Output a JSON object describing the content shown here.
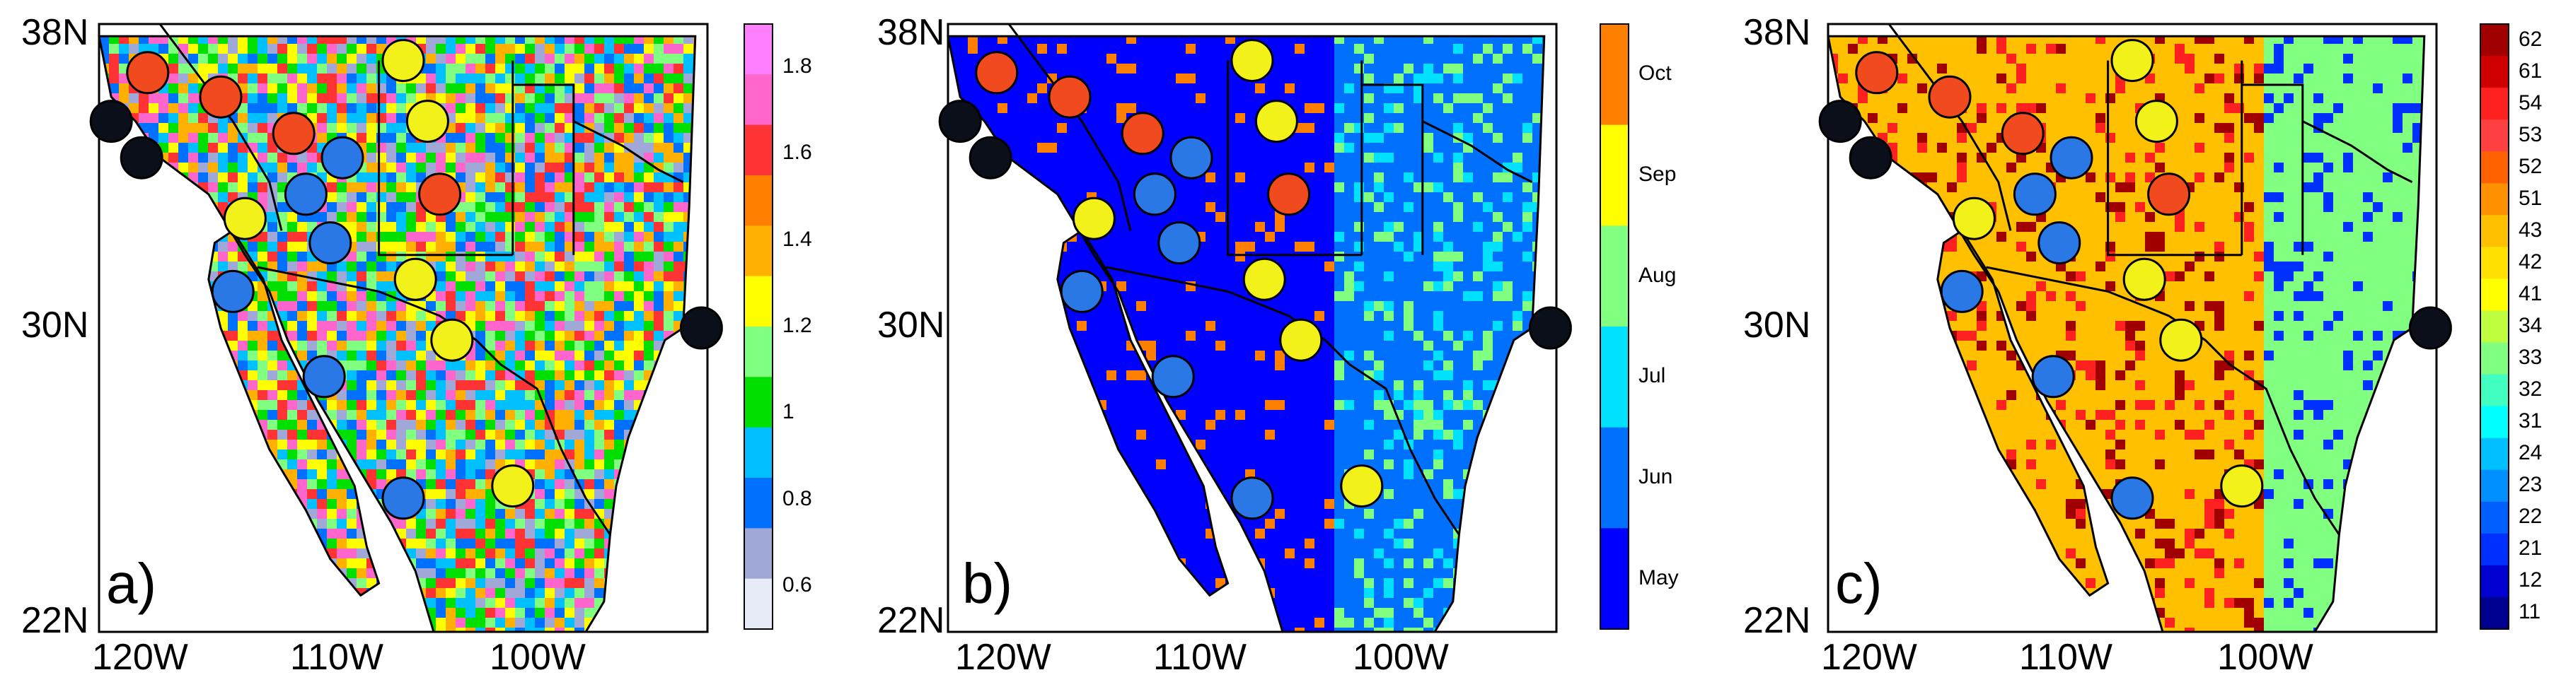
{
  "panels": [
    {
      "letter": "a)",
      "ylabels": [
        "38N",
        "30N",
        "22N"
      ],
      "xlabels": [
        "120W",
        "110W",
        "100W"
      ],
      "colorbar": {
        "labels": [
          "1.8",
          "1.6",
          "1.4",
          "1.2",
          "1",
          "0.8",
          "0.6"
        ],
        "colors": [
          "#ff80ff",
          "#ff66cc",
          "#ff3333",
          "#ff8000",
          "#ffb000",
          "#ffff00",
          "#80ff80",
          "#00e000",
          "#00c0ff",
          "#0070ff",
          "#a0a8d8",
          "#e8ecf8"
        ]
      },
      "map_palette": [
        "#00c0ff",
        "#0070ff",
        "#80ff80",
        "#00e000",
        "#ffff00",
        "#ff3333",
        "#ffb000",
        "#a0a8d8",
        "#ff66cc"
      ]
    },
    {
      "letter": "b)",
      "ylabels": [
        "38N",
        "30N",
        "22N"
      ],
      "xlabels": [
        "120W",
        "110W",
        "100W"
      ],
      "colorbar": {
        "labels": [
          "Oct",
          "Sep",
          "Aug",
          "Jul",
          "Jun",
          "May"
        ],
        "colors": [
          "#ff8000",
          "#ffff00",
          "#80ff80",
          "#00e0ff",
          "#0070ff",
          "#0000ff"
        ]
      },
      "map_palette": [
        "#0000ff",
        "#0070ff",
        "#00e0ff",
        "#80ff80",
        "#ffff00",
        "#ff8000"
      ]
    },
    {
      "letter": "c)",
      "ylabels": [
        "38N",
        "30N",
        "22N"
      ],
      "xlabels": [
        "120W",
        "110W",
        "100W"
      ],
      "colorbar": {
        "labels": [
          "62",
          "61",
          "54",
          "53",
          "52",
          "51",
          "43",
          "42",
          "41",
          "34",
          "33",
          "32",
          "31",
          "24",
          "23",
          "22",
          "21",
          "12",
          "11"
        ],
        "colors": [
          "#a00000",
          "#d00000",
          "#ff2020",
          "#ff4040",
          "#ff6000",
          "#ff9000",
          "#ffc000",
          "#ffe000",
          "#ffff00",
          "#c0ff40",
          "#80ff80",
          "#40ffc0",
          "#00ffff",
          "#00c0ff",
          "#0090ff",
          "#0060ff",
          "#0030ff",
          "#0000d0",
          "#000090"
        ]
      },
      "map_palette": [
        "#ffc000",
        "#ffc000",
        "#ffc000",
        "#ff9000",
        "#80ff80",
        "#ff2020",
        "#a00000",
        "#0030ff",
        "#00c0ff"
      ]
    }
  ],
  "stations": {
    "colors": {
      "red": "#f04a1e",
      "blue": "#2a78e6",
      "yellow": "#f2f21a",
      "black": "#0b0f1a"
    }
  }
}
